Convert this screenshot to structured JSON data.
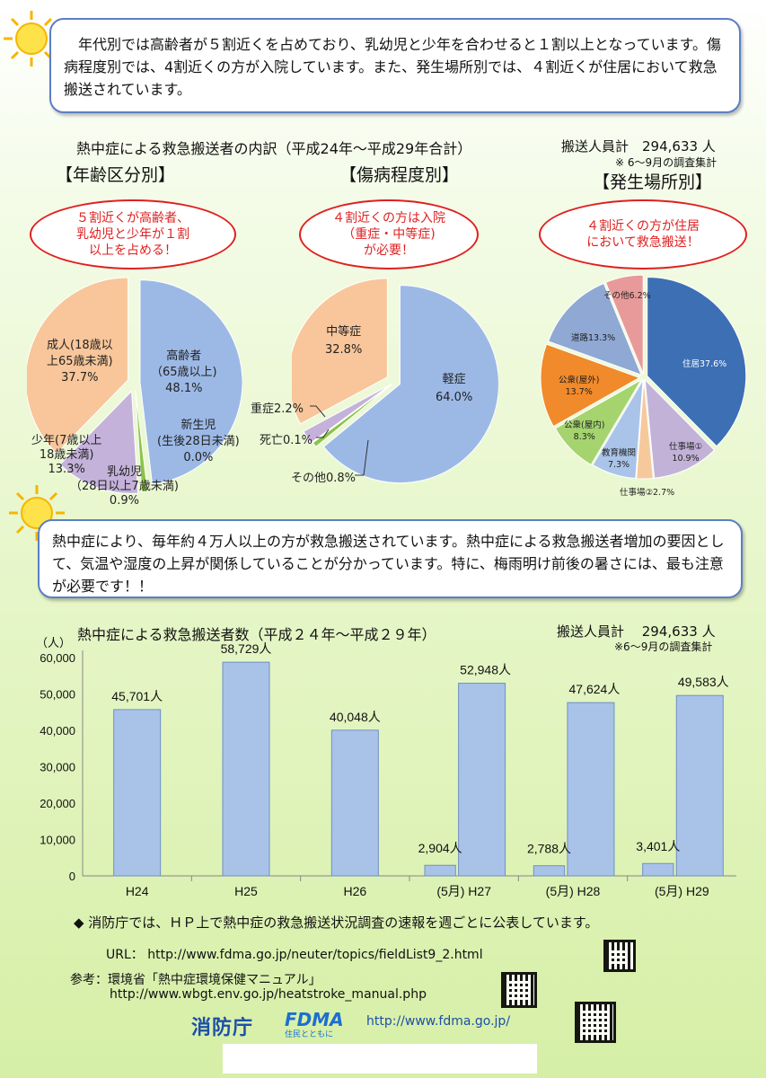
{
  "intro": {
    "text": "　年代別では高齢者が５割近くを占めており、乳幼児と少年を合わせると１割以上となっています。傷病程度別では、4割近くの方が入院しています。また、発生場所別では、４割近くが住居において救急搬送されています。"
  },
  "pies": {
    "heading": "熱中症による救急搬送者の内訳（平成24年～平成29年合計）",
    "total_label": "搬送人員計　294,633 人",
    "survey_note": "※ 6～9月の調査集計",
    "age": {
      "title": "【年齢区分別】",
      "callout": [
        "５割近くが高齢者、",
        "乳幼児と少年が１割",
        "以上を占める！"
      ],
      "labels": {
        "elderly": [
          "高齢者",
          "（65歳以上)",
          "48.1%"
        ],
        "newborn": [
          "新生児",
          "(生後28日未満)",
          "0.0%"
        ],
        "infant": [
          "乳幼児",
          "（28日以上7歳未満)",
          "0.9%"
        ],
        "youth": [
          "少年(7歳以上",
          "18歳未満)",
          "13.3%"
        ],
        "adult": [
          "成人(18歳以",
          "上65歳未満)",
          "37.7%"
        ]
      }
    },
    "severity": {
      "title": "【傷病程度別】",
      "callout": [
        "４割近くの方は入院",
        "（重症・中等症)",
        "が必要！"
      ],
      "labels": {
        "mild": [
          "軽症",
          "64.0%"
        ],
        "moderate": [
          "中等症",
          "32.8%"
        ],
        "severe": "重症2.2%",
        "death": "死亡0.1%",
        "other": "その他0.8%"
      }
    },
    "location": {
      "title": "【発生場所別】",
      "callout": [
        "４割近くの方が住居",
        "において救急搬送！"
      ],
      "labels": {
        "home": "住居37.6%",
        "work1": [
          "仕事場①",
          "10.9%"
        ],
        "work2": "仕事場②2.7%",
        "school": [
          "教育機関",
          "7.3%"
        ],
        "public_in": [
          "公衆(屋内)",
          "8.3%"
        ],
        "public_out": [
          "公衆(屋外)",
          "13.7%"
        ],
        "road": "道路13.3%",
        "other": "その他6.2%"
      }
    }
  },
  "notice": {
    "text": "熱中症により、毎年約４万人以上の方が救急搬送されています。熱中症による救急搬送者増加の要因として、気温や湿度の上昇が関係していることが分かっています。特に、梅雨明け前後の暑さには、最も注意が必要です！！"
  },
  "bar_chart": {
    "heading": "熱中症による救急搬送者数（平成２４年～平成２９年）",
    "total_label": "搬送人員計　 294,633 人",
    "survey_note": "※6～9月の調査集計"
  },
  "chart_data": [
    {
      "type": "pie",
      "title": "【年齢区分別】",
      "categories": [
        "高齢者（65歳以上)",
        "新生児(生後28日未満)",
        "乳幼児（28日以上7歳未満)",
        "少年(7歳以上18歳未満)",
        "成人(18歳以上65歳未満)"
      ],
      "values": [
        48.1,
        0.0,
        0.9,
        13.3,
        37.7
      ],
      "colors": [
        "#9cb9e6",
        "#3a7f3a",
        "#8bc34a",
        "#c4b2da",
        "#f8c69a"
      ]
    },
    {
      "type": "pie",
      "title": "【傷病程度別】",
      "categories": [
        "軽症",
        "その他",
        "死亡",
        "重症",
        "中等症"
      ],
      "values": [
        64.0,
        0.8,
        0.1,
        2.2,
        32.8
      ],
      "colors": [
        "#9cb9e6",
        "#8bc34a",
        "#3a7f3a",
        "#c4b2da",
        "#f8c69a"
      ]
    },
    {
      "type": "pie",
      "title": "【発生場所別】",
      "categories": [
        "住居",
        "仕事場①",
        "仕事場②",
        "教育機関",
        "公衆(屋内)",
        "公衆(屋外)",
        "道路",
        "その他"
      ],
      "values": [
        37.6,
        10.9,
        2.7,
        7.3,
        8.3,
        13.7,
        13.3,
        6.2
      ],
      "colors": [
        "#3d6fb4",
        "#c3b2d8",
        "#f6c99d",
        "#a9c4e8",
        "#a5d46e",
        "#f08a2a",
        "#8fa8d4",
        "#e89a9a"
      ]
    },
    {
      "type": "bar",
      "title": "熱中症による救急搬送者数（平成２４年～平成２９年）",
      "ylabel": "（人）",
      "ylim": [
        0,
        60000
      ],
      "yticks": [
        "0",
        "10,000",
        "20,000",
        "30,000",
        "40,000",
        "50,000",
        "60,000"
      ],
      "categories": [
        "H24",
        "H25",
        "H26",
        "(5月) H27",
        "(5月) H28",
        "(5月) H29"
      ],
      "series": [
        {
          "values": [
            45701,
            58729,
            40048,
            52948,
            47624,
            49583
          ],
          "labels": [
            "45,701人",
            "58,729人",
            "40,048人",
            "52,948人",
            "47,624人",
            "49,583人"
          ]
        },
        {
          "values": [
            null,
            null,
            null,
            2904,
            2788,
            3401
          ],
          "labels": [
            "",
            "",
            "",
            "2,904人",
            "2,788人",
            "3,401人"
          ]
        }
      ],
      "color": "#a9c3e8"
    }
  ],
  "footer": {
    "announce": "◆ 消防庁では、ＨＰ上で熱中症の救急搬送状況調査の速報を週ごとに公表しています。",
    "url_label": "URL：",
    "url": "http://www.fdma.go.jp/neuter/topics/fieldList9_2.html",
    "ref_label": "参考：環境省「熱中症環境保健マニュアル」",
    "ref_url": "http://www.wbgt.env.go.jp/heatstroke_manual.php",
    "logo_fdma_jp": "消防庁",
    "logo_fdma_en": "FDMA",
    "logo_tagline": "住民とともに",
    "site_url": "http://www.fdma.go.jp/"
  }
}
